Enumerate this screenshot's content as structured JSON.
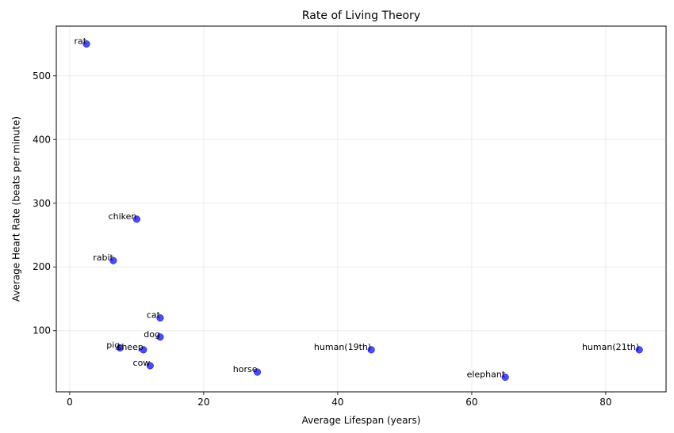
{
  "chart_data": {
    "type": "scatter",
    "title": "Rate of Living Theory",
    "xlabel": "Average Lifespan (years)",
    "ylabel": "Average Heart Rate (beats per minute)",
    "xlim": [
      -2,
      89
    ],
    "ylim": [
      4,
      578
    ],
    "xticks": [
      0,
      20,
      40,
      60,
      80
    ],
    "yticks": [
      100,
      200,
      300,
      400,
      500
    ],
    "grid": true,
    "marker_color": "#0000ff",
    "points": [
      {
        "label": "rat",
        "x": 2.5,
        "y": 550
      },
      {
        "label": "chiken",
        "x": 10,
        "y": 275
      },
      {
        "label": "rabit",
        "x": 6.5,
        "y": 210
      },
      {
        "label": "cat",
        "x": 13.5,
        "y": 120
      },
      {
        "label": "dog",
        "x": 13.5,
        "y": 90
      },
      {
        "label": "pig",
        "x": 7.5,
        "y": 73
      },
      {
        "label": "sheep",
        "x": 11,
        "y": 70
      },
      {
        "label": "cow",
        "x": 12,
        "y": 45
      },
      {
        "label": "horse",
        "x": 28,
        "y": 35
      },
      {
        "label": "human(19th)",
        "x": 45,
        "y": 70
      },
      {
        "label": "elephant",
        "x": 65,
        "y": 27
      },
      {
        "label": "human(21th)",
        "x": 85,
        "y": 70
      }
    ]
  }
}
